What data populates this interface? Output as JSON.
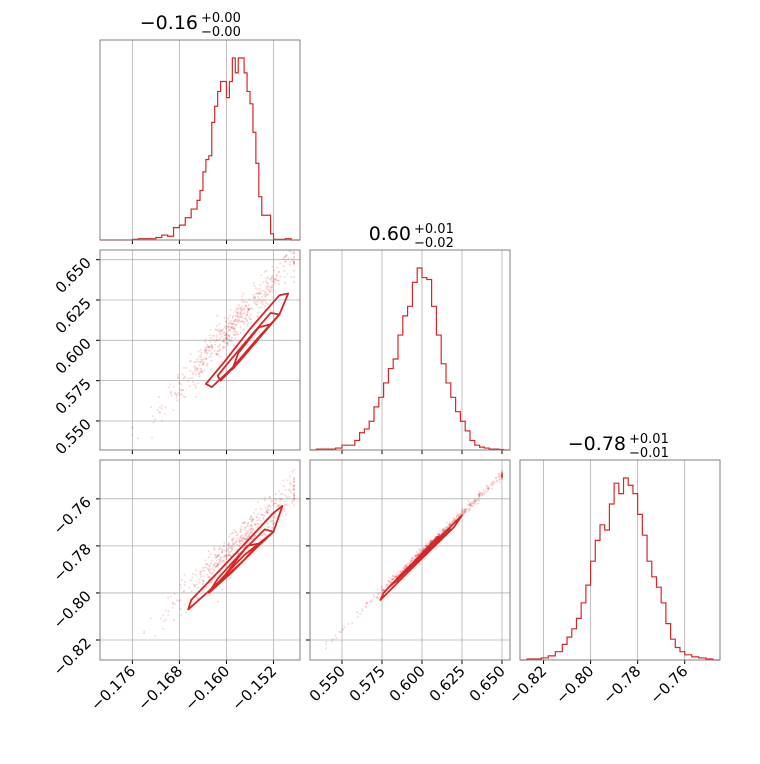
{
  "colors": {
    "hist": "#d62728",
    "contour": "#d62728",
    "scatter": "#d62728",
    "grid": "#b0b0b0",
    "frame": "#808080"
  },
  "titles": {
    "p1": {
      "main": "−0.16",
      "sup": "+0.00",
      "sub": "−0.00"
    },
    "p2": {
      "main": "0.60",
      "sup": "+0.01",
      "sub": "−0.02"
    },
    "p3": {
      "main": "−0.78",
      "sup": "+0.01",
      "sub": "−0.01"
    }
  },
  "chart_data": [
    {
      "type": "histogram",
      "parameter": "p1",
      "xlim": [
        -0.1815,
        -0.1475
      ],
      "xticks": [
        -0.176,
        -0.168,
        -0.16,
        -0.152
      ],
      "xticklabels": [
        "−0.176",
        "−0.168",
        "−0.160",
        "−0.152"
      ],
      "bin_edges": [
        -0.1815,
        -0.18,
        -0.179,
        -0.178,
        -0.177,
        -0.176,
        -0.175,
        -0.174,
        -0.173,
        -0.172,
        -0.171,
        -0.17,
        -0.169,
        -0.168,
        -0.167,
        -0.166,
        -0.165,
        -0.1645,
        -0.164,
        -0.1635,
        -0.163,
        -0.1625,
        -0.162,
        -0.1615,
        -0.161,
        -0.1605,
        -0.16,
        -0.1595,
        -0.159,
        -0.1585,
        -0.158,
        -0.1575,
        -0.157,
        -0.1565,
        -0.156,
        -0.1555,
        -0.155,
        -0.1545,
        -0.154,
        -0.1535,
        -0.153,
        -0.1525,
        -0.152,
        -0.151,
        -0.15,
        -0.149,
        -0.1475
      ],
      "counts": [
        0,
        0,
        0,
        0,
        0,
        0.5,
        1,
        1,
        1,
        2,
        4,
        3,
        10,
        12,
        18,
        25,
        32,
        40,
        55,
        65,
        68,
        95,
        108,
        120,
        128,
        128,
        115,
        128,
        147,
        135,
        147,
        147,
        135,
        120,
        110,
        87,
        62,
        35,
        20,
        20,
        20,
        5,
        0.5,
        0.5,
        1,
        0
      ]
    },
    {
      "type": "histogram",
      "parameter": "p2",
      "xlim": [
        0.53,
        0.655
      ],
      "xticks": [
        0.55,
        0.575,
        0.6,
        0.625,
        0.65
      ],
      "xticklabels": [
        "0.550",
        "0.575",
        "0.600",
        "0.625",
        "0.650"
      ],
      "bin_edges": [
        0.53,
        0.534,
        0.538,
        0.542,
        0.546,
        0.55,
        0.5545,
        0.558,
        0.561,
        0.564,
        0.567,
        0.57,
        0.573,
        0.576,
        0.579,
        0.582,
        0.585,
        0.588,
        0.591,
        0.594,
        0.597,
        0.6,
        0.603,
        0.606,
        0.609,
        0.612,
        0.615,
        0.618,
        0.621,
        0.624,
        0.627,
        0.63,
        0.633,
        0.636,
        0.639,
        0.642,
        0.645,
        0.648,
        0.651,
        0.655
      ],
      "counts": [
        0,
        1,
        1,
        1,
        2,
        5,
        5,
        10,
        18,
        22,
        30,
        45,
        55,
        70,
        85,
        95,
        120,
        140,
        150,
        175,
        190,
        180,
        178,
        150,
        120,
        90,
        70,
        55,
        40,
        30,
        20,
        10,
        5,
        3,
        2,
        1,
        1,
        0.5,
        0
      ]
    },
    {
      "type": "histogram",
      "parameter": "p3",
      "xlim": [
        -0.83,
        -0.745
      ],
      "xticks": [
        -0.82,
        -0.8,
        -0.78,
        -0.76
      ],
      "xticklabels": [
        "−0.82",
        "−0.80",
        "−0.78",
        "−0.76"
      ],
      "bin_edges": [
        -0.83,
        -0.827,
        -0.824,
        -0.821,
        -0.818,
        -0.815,
        -0.812,
        -0.81,
        -0.808,
        -0.806,
        -0.804,
        -0.802,
        -0.8,
        -0.798,
        -0.796,
        -0.794,
        -0.792,
        -0.79,
        -0.788,
        -0.786,
        -0.784,
        -0.782,
        -0.78,
        -0.778,
        -0.776,
        -0.774,
        -0.772,
        -0.77,
        -0.768,
        -0.766,
        -0.764,
        -0.762,
        -0.76,
        -0.757,
        -0.754,
        -0.751,
        -0.748,
        -0.745
      ],
      "counts": [
        0,
        1,
        1,
        2,
        4,
        8,
        15,
        22,
        30,
        40,
        55,
        72,
        95,
        115,
        130,
        125,
        150,
        170,
        160,
        175,
        168,
        160,
        140,
        120,
        95,
        80,
        70,
        55,
        35,
        20,
        12,
        8,
        5,
        3,
        2,
        1,
        0
      ]
    },
    {
      "type": "scatter",
      "parameters": [
        "p1",
        "p2"
      ],
      "xlim": [
        -0.1815,
        -0.1475
      ],
      "ylim": [
        0.532,
        0.656
      ],
      "yticks": [
        0.55,
        0.575,
        0.6,
        0.625,
        0.65
      ],
      "yticklabels": [
        "0.550",
        "0.575",
        "0.600",
        "0.625",
        "0.650"
      ],
      "trend": {
        "x": [
          -0.176,
          -0.1485
        ],
        "y": [
          0.54,
          0.65
        ],
        "spread": 0.012
      },
      "contours": [
        [
          [
            -0.1625,
            0.571
          ],
          [
            -0.159,
            0.583
          ],
          [
            -0.155,
            0.6
          ],
          [
            -0.151,
            0.616
          ],
          [
            -0.1495,
            0.629
          ],
          [
            -0.151,
            0.628
          ],
          [
            -0.156,
            0.607
          ],
          [
            -0.1605,
            0.586
          ],
          [
            -0.1635,
            0.573
          ],
          [
            -0.1625,
            0.571
          ]
        ],
        [
          [
            -0.161,
            0.575
          ],
          [
            -0.158,
            0.586
          ],
          [
            -0.1545,
            0.601
          ],
          [
            -0.151,
            0.616
          ],
          [
            -0.1525,
            0.617
          ],
          [
            -0.1565,
            0.6
          ],
          [
            -0.1595,
            0.587
          ],
          [
            -0.1615,
            0.578
          ],
          [
            -0.161,
            0.575
          ]
        ],
        [
          [
            -0.159,
            0.582
          ],
          [
            -0.1555,
            0.597
          ],
          [
            -0.1525,
            0.61
          ],
          [
            -0.1545,
            0.608
          ],
          [
            -0.158,
            0.592
          ],
          [
            -0.159,
            0.582
          ]
        ]
      ]
    },
    {
      "type": "scatter",
      "parameters": [
        "p1",
        "p3"
      ],
      "xlim": [
        -0.1815,
        -0.1475
      ],
      "ylim": [
        -0.8285,
        -0.7435
      ],
      "yticks": [
        -0.82,
        -0.8,
        -0.78,
        -0.76
      ],
      "yticklabels": [
        "−0.82",
        "−0.80",
        "−0.78",
        "−0.76"
      ],
      "trend": {
        "x": [
          -0.174,
          -0.1485
        ],
        "y": [
          -0.818,
          -0.756
        ],
        "spread": 0.009
      },
      "contours": [
        [
          [
            -0.1665,
            -0.807
          ],
          [
            -0.162,
            -0.797
          ],
          [
            -0.157,
            -0.784
          ],
          [
            -0.152,
            -0.774
          ],
          [
            -0.1505,
            -0.763
          ],
          [
            -0.152,
            -0.766
          ],
          [
            -0.1565,
            -0.778
          ],
          [
            -0.161,
            -0.79
          ],
          [
            -0.166,
            -0.803
          ],
          [
            -0.1665,
            -0.807
          ]
        ],
        [
          [
            -0.163,
            -0.8
          ],
          [
            -0.159,
            -0.791
          ],
          [
            -0.155,
            -0.781
          ],
          [
            -0.152,
            -0.774
          ],
          [
            -0.1535,
            -0.773
          ],
          [
            -0.1575,
            -0.783
          ],
          [
            -0.1615,
            -0.794
          ],
          [
            -0.163,
            -0.8
          ]
        ],
        [
          [
            -0.161,
            -0.795
          ],
          [
            -0.157,
            -0.786
          ],
          [
            -0.1545,
            -0.779
          ],
          [
            -0.1565,
            -0.78
          ],
          [
            -0.1595,
            -0.79
          ],
          [
            -0.161,
            -0.795
          ]
        ]
      ]
    },
    {
      "type": "scatter",
      "parameters": [
        "p2",
        "p3"
      ],
      "xlim": [
        0.53,
        0.655
      ],
      "ylim": [
        -0.8285,
        -0.7435
      ],
      "trend": {
        "x": [
          0.54,
          0.65
        ],
        "y": [
          -0.822,
          -0.75
        ],
        "spread": 0.002
      },
      "contours": [
        [
          [
            0.574,
            -0.803
          ],
          [
            0.59,
            -0.792
          ],
          [
            0.605,
            -0.782
          ],
          [
            0.62,
            -0.772
          ],
          [
            0.625,
            -0.767
          ],
          [
            0.622,
            -0.769
          ],
          [
            0.606,
            -0.78
          ],
          [
            0.59,
            -0.79
          ],
          [
            0.576,
            -0.8
          ],
          [
            0.574,
            -0.803
          ]
        ],
        [
          [
            0.58,
            -0.797
          ],
          [
            0.595,
            -0.788
          ],
          [
            0.61,
            -0.778
          ],
          [
            0.618,
            -0.773
          ],
          [
            0.616,
            -0.773
          ],
          [
            0.6,
            -0.784
          ],
          [
            0.584,
            -0.795
          ],
          [
            0.58,
            -0.797
          ]
        ],
        [
          [
            0.588,
            -0.792
          ],
          [
            0.6,
            -0.785
          ],
          [
            0.612,
            -0.777
          ],
          [
            0.61,
            -0.776
          ],
          [
            0.596,
            -0.786
          ],
          [
            0.588,
            -0.792
          ]
        ]
      ]
    }
  ]
}
